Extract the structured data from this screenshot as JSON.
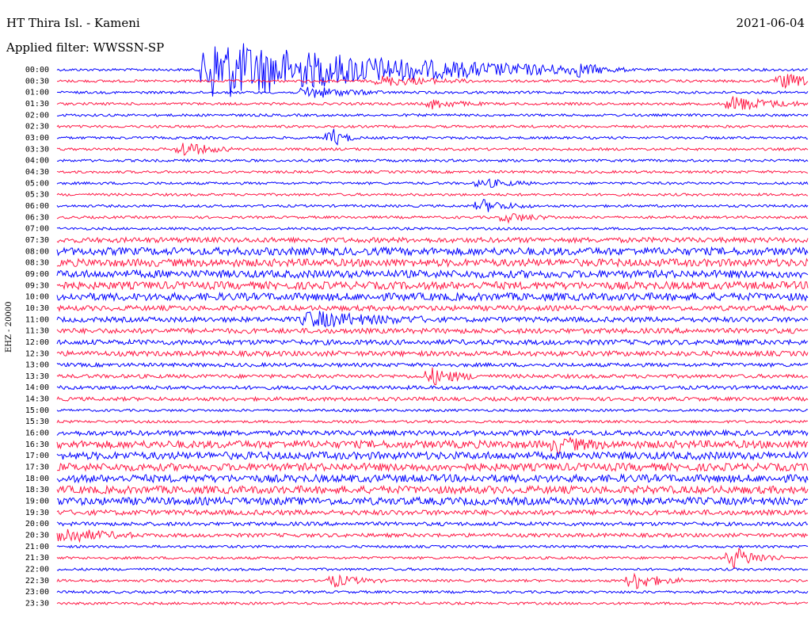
{
  "header": {
    "station": "HT Thira Isl. - Kameni",
    "filter": "Applied filter: WWSSN-SP",
    "date": "2021-06-04",
    "channel": "EHZ - 20000"
  },
  "colors": {
    "blue": "#0000ff",
    "red": "#ff1744",
    "background": "#ffffff"
  },
  "chart_data": {
    "type": "line",
    "title": "HT Thira Isl. - Kameni",
    "subtitle": "Applied filter: WWSSN-SP",
    "date": "2021-06-04",
    "ylabel": "EHZ - 20000",
    "tick_labels": [
      "00:00",
      "00:30",
      "01:00",
      "01:30",
      "02:00",
      "02:30",
      "03:00",
      "03:30",
      "04:00",
      "04:30",
      "05:00",
      "05:30",
      "06:00",
      "06:30",
      "07:00",
      "07:30",
      "08:00",
      "08:30",
      "09:00",
      "09:30",
      "10:00",
      "10:30",
      "11:00",
      "11:30",
      "12:00",
      "12:30",
      "13:00",
      "13:30",
      "14:00",
      "14:30",
      "15:00",
      "15:30",
      "16:00",
      "16:30",
      "17:00",
      "17:30",
      "18:00",
      "18:30",
      "19:00",
      "19:30",
      "20:00",
      "20:30",
      "21:00",
      "21:30",
      "22:00",
      "22:30",
      "23:00",
      "23:30"
    ],
    "trace_colors": [
      "blue",
      "red"
    ],
    "noise_levels": [
      1,
      1,
      1,
      1,
      1,
      1,
      1,
      1,
      1,
      1,
      1,
      1,
      1,
      1,
      1,
      2,
      3,
      3,
      3,
      3,
      3,
      2,
      2,
      2,
      2,
      2,
      1.5,
      1.5,
      1.5,
      1.5,
      1,
      1,
      2,
      3,
      3,
      3,
      3,
      3,
      3,
      2,
      1.5,
      1.5,
      1,
      1,
      1,
      1,
      1,
      1
    ],
    "events": [
      {
        "row": 0,
        "minute": 6,
        "amp": 40,
        "dur": 15
      },
      {
        "row": 0,
        "minute": 21,
        "amp": 8,
        "dur": 2
      },
      {
        "row": 1,
        "minute": 13,
        "amp": 6,
        "dur": 4
      },
      {
        "row": 1,
        "minute": 29,
        "amp": 10,
        "dur": 2
      },
      {
        "row": 2,
        "minute": 10,
        "amp": 8,
        "dur": 3
      },
      {
        "row": 3,
        "minute": 15,
        "amp": 6,
        "dur": 2
      },
      {
        "row": 3,
        "minute": 27,
        "amp": 10,
        "dur": 3
      },
      {
        "row": 6,
        "minute": 11,
        "amp": 12,
        "dur": 1
      },
      {
        "row": 7,
        "minute": 5,
        "amp": 10,
        "dur": 2
      },
      {
        "row": 10,
        "minute": 17,
        "amp": 6,
        "dur": 2
      },
      {
        "row": 12,
        "minute": 17,
        "amp": 8,
        "dur": 2
      },
      {
        "row": 13,
        "minute": 18,
        "amp": 6,
        "dur": 2
      },
      {
        "row": 22,
        "minute": 10,
        "amp": 10,
        "dur": 5
      },
      {
        "row": 27,
        "minute": 15,
        "amp": 10,
        "dur": 2
      },
      {
        "row": 33,
        "minute": 20,
        "amp": 8,
        "dur": 2
      },
      {
        "row": 41,
        "minute": 0,
        "amp": 12,
        "dur": 3
      },
      {
        "row": 43,
        "minute": 27,
        "amp": 14,
        "dur": 2
      },
      {
        "row": 45,
        "minute": 11,
        "amp": 8,
        "dur": 2
      },
      {
        "row": 45,
        "minute": 23,
        "amp": 12,
        "dur": 2
      }
    ],
    "xlim_minutes": [
      0,
      30
    ],
    "grid": false
  }
}
